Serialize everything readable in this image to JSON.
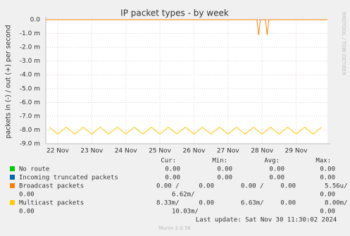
{
  "chart_data": {
    "type": "line",
    "title": "IP packet types - by week",
    "y_label": "packets in (-) / out (+) per second",
    "side_label": "RRDTOOL / TOBI OETIKER",
    "xlim": [
      21.65,
      29.92
    ],
    "xticks": [
      {
        "value": 22,
        "label": "22 Nov"
      },
      {
        "value": 23,
        "label": "23 Nov"
      },
      {
        "value": 24,
        "label": "24 Nov"
      },
      {
        "value": 25,
        "label": "25 Nov"
      },
      {
        "value": 26,
        "label": "26 Nov"
      },
      {
        "value": 27,
        "label": "27 Nov"
      },
      {
        "value": 28,
        "label": "28 Nov"
      },
      {
        "value": 29,
        "label": "29 Nov"
      }
    ],
    "ylim": [
      -0.009,
      0
    ],
    "yticks": [
      {
        "value": 0,
        "label": "0.0"
      },
      {
        "value": -0.001,
        "label": "-1.0 m"
      },
      {
        "value": -0.002,
        "label": "-2.0 m"
      },
      {
        "value": -0.003,
        "label": "-3.0 m"
      },
      {
        "value": -0.004,
        "label": "-4.0 m"
      },
      {
        "value": -0.005,
        "label": "-5.0 m"
      },
      {
        "value": -0.006,
        "label": "-6.0 m"
      },
      {
        "value": -0.007,
        "label": "-7.0 m"
      },
      {
        "value": -0.008,
        "label": "-8.0 m"
      },
      {
        "value": -0.009,
        "label": "-9.0 m"
      }
    ],
    "grid": true,
    "series": [
      {
        "name": "Broadcast packets",
        "color": "#ff8000",
        "x": [
          21.65,
          27.85,
          27.9,
          27.95,
          28.1,
          28.15,
          28.2,
          29.92
        ],
        "values": [
          0,
          0,
          -0.0011,
          0,
          0,
          -0.0011,
          0,
          0
        ]
      },
      {
        "name": "Multicast packets",
        "color": "#ffcc00",
        "x": [
          21.75,
          22,
          22.25,
          22.5,
          22.75,
          23,
          23.25,
          23.5,
          23.75,
          24,
          24.25,
          24.5,
          24.75,
          25,
          25.25,
          25.5,
          25.75,
          26,
          26.25,
          26.5,
          26.75,
          27,
          27.25,
          27.5,
          27.75,
          28,
          28.25,
          28.5,
          28.75,
          29,
          29.25,
          29.5,
          29.75
        ],
        "values": [
          -0.0078,
          -0.0083,
          -0.0078,
          -0.0083,
          -0.0078,
          -0.0083,
          -0.0078,
          -0.0083,
          -0.0078,
          -0.0083,
          -0.0078,
          -0.0083,
          -0.0078,
          -0.0083,
          -0.0078,
          -0.0083,
          -0.0078,
          -0.0083,
          -0.0078,
          -0.0083,
          -0.0078,
          -0.0083,
          -0.0078,
          -0.0083,
          -0.0078,
          -0.0083,
          -0.0078,
          -0.0083,
          -0.0078,
          -0.0083,
          -0.0078,
          -0.0083,
          -0.0078
        ]
      }
    ]
  },
  "legend": {
    "headers": [
      "Cur:",
      "Min:",
      "Avg:",
      "Max:"
    ],
    "rows": [
      {
        "name": "No route",
        "color": "#00cc00",
        "line1": [
          "0.00",
          "0.00",
          "0.00",
          "0.00"
        ]
      },
      {
        "name": "Incoming truncated packets",
        "color": "#0066b3",
        "line1": [
          "0.00",
          "0.00",
          "0.00",
          "0.00"
        ]
      },
      {
        "name": "Broadcast packets",
        "color": "#ff8000",
        "line1": [
          "0.00 /",
          "0.00",
          "0.00 /",
          "0.00",
          "5.56u/"
        ],
        "line2": [
          "0.00",
          "6.62m/",
          "0.00"
        ]
      },
      {
        "name": "Multicast packets",
        "color": "#ffcc00",
        "line1": [
          "8.33m/",
          "0.00",
          "6.63m/",
          "0.00",
          "8.00m/"
        ],
        "line2": [
          "0.00",
          "10.03m/",
          "0.00"
        ]
      }
    ]
  },
  "footer": {
    "last_update": "Last update: Sat Nov 30 11:30:02 2024",
    "version": "Munin 2.0.56"
  }
}
